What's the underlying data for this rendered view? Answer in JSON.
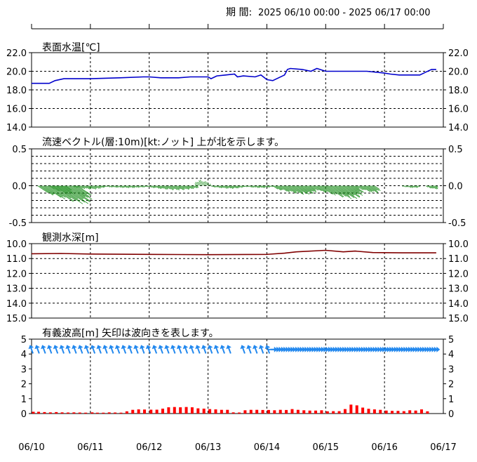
{
  "period": {
    "label": "期 間:",
    "range": "2025 06/10 00:00 - 2025 06/17 00:00"
  },
  "colors": {
    "temperature": "#0000cc",
    "current": "#008000",
    "depth": "#800000",
    "wave_arrow": "#2288ee",
    "wave_bar": "#ff0000"
  },
  "x_axis": {
    "ticks": [
      "06/10",
      "06/11",
      "06/12",
      "06/13",
      "06/14",
      "06/15",
      "06/16",
      "06/17"
    ]
  },
  "chart_data": [
    {
      "type": "line",
      "title": "表面水温[℃]",
      "ylim": [
        14.0,
        22.0
      ],
      "yticks": [
        "22.0",
        "20.0",
        "18.0",
        "16.0",
        "14.0"
      ],
      "x_unit": "days since 06/10 00:00",
      "series": [
        {
          "values": [
            [
              0.0,
              18.7
            ],
            [
              0.3,
              18.7
            ],
            [
              0.4,
              19.0
            ],
            [
              0.55,
              19.2
            ],
            [
              1.0,
              19.2
            ],
            [
              1.5,
              19.3
            ],
            [
              1.9,
              19.4
            ],
            [
              2.0,
              19.4
            ],
            [
              2.2,
              19.3
            ],
            [
              2.5,
              19.3
            ],
            [
              2.7,
              19.4
            ],
            [
              3.0,
              19.4
            ],
            [
              3.05,
              19.2
            ],
            [
              3.15,
              19.5
            ],
            [
              3.3,
              19.6
            ],
            [
              3.45,
              19.7
            ],
            [
              3.5,
              19.4
            ],
            [
              3.6,
              19.5
            ],
            [
              3.8,
              19.4
            ],
            [
              3.9,
              19.6
            ],
            [
              4.0,
              19.1
            ],
            [
              4.1,
              19.0
            ],
            [
              4.2,
              19.3
            ],
            [
              4.3,
              19.6
            ],
            [
              4.35,
              20.2
            ],
            [
              4.4,
              20.3
            ],
            [
              4.6,
              20.2
            ],
            [
              4.75,
              20.0
            ],
            [
              4.85,
              20.3
            ],
            [
              5.0,
              20.0
            ],
            [
              5.5,
              20.0
            ],
            [
              5.7,
              20.0
            ],
            [
              6.0,
              19.8
            ],
            [
              6.1,
              19.7
            ],
            [
              6.25,
              19.6
            ],
            [
              6.6,
              19.6
            ],
            [
              6.7,
              19.9
            ],
            [
              6.8,
              20.2
            ],
            [
              6.88,
              20.2
            ]
          ]
        }
      ]
    },
    {
      "type": "vector",
      "title": "流速ベクトル(層:10m)[kt:ノット]  上が北を示します。",
      "ylim": [
        -0.5,
        0.5
      ],
      "yticks": [
        "0.5",
        "0.0",
        "-0.5"
      ],
      "segments": [
        [
          0.1,
          0.8,
          0.25
        ],
        [
          0.3,
          0.6,
          0.12
        ],
        [
          0.7,
          1.2,
          0.05
        ],
        [
          1.2,
          2.0,
          0.03
        ],
        [
          2.0,
          2.8,
          0.06
        ],
        [
          2.8,
          3.05,
          -0.08
        ],
        [
          3.05,
          3.6,
          0.04
        ],
        [
          3.6,
          4.1,
          0.03
        ],
        [
          4.1,
          4.8,
          0.12
        ],
        [
          4.8,
          5.5,
          0.18
        ],
        [
          5.5,
          5.85,
          0.1
        ],
        [
          6.3,
          6.6,
          0.03
        ],
        [
          6.7,
          6.88,
          0.05
        ]
      ]
    },
    {
      "type": "line",
      "title": "観測水深[m]",
      "ylim": [
        10.0,
        15.0
      ],
      "y_inverted": true,
      "yticks": [
        "10.0",
        "11.0",
        "12.0",
        "13.0",
        "14.0",
        "15.0"
      ],
      "x_unit": "days since 06/10 00:00",
      "series": [
        {
          "values": [
            [
              0.0,
              10.68
            ],
            [
              0.5,
              10.66
            ],
            [
              1.0,
              10.7
            ],
            [
              2.0,
              10.72
            ],
            [
              3.0,
              10.74
            ],
            [
              4.0,
              10.72
            ],
            [
              4.3,
              10.64
            ],
            [
              4.5,
              10.55
            ],
            [
              5.0,
              10.45
            ],
            [
              5.3,
              10.55
            ],
            [
              5.5,
              10.5
            ],
            [
              5.8,
              10.6
            ],
            [
              6.3,
              10.62
            ],
            [
              6.88,
              10.62
            ]
          ]
        }
      ]
    },
    {
      "type": "bar",
      "title": "有義波高[m]  矢印は波向きを表します。",
      "ylim": [
        0,
        5
      ],
      "yticks": [
        "5",
        "4",
        "3",
        "2",
        "1",
        "0"
      ],
      "x_unit": "days since 06/10 00:00",
      "values": [
        [
          0.03,
          0.12
        ],
        [
          0.12,
          0.12
        ],
        [
          0.22,
          0.1
        ],
        [
          0.32,
          0.08
        ],
        [
          0.42,
          0.1
        ],
        [
          0.52,
          0.08
        ],
        [
          0.62,
          0.07
        ],
        [
          0.72,
          0.08
        ],
        [
          0.82,
          0.07
        ],
        [
          0.92,
          0.06
        ],
        [
          1.03,
          0.08
        ],
        [
          1.12,
          0.06
        ],
        [
          1.22,
          0.06
        ],
        [
          1.32,
          0.08
        ],
        [
          1.42,
          0.07
        ],
        [
          1.52,
          0.06
        ],
        [
          1.62,
          0.15
        ],
        [
          1.72,
          0.25
        ],
        [
          1.82,
          0.28
        ],
        [
          1.92,
          0.27
        ],
        [
          2.03,
          0.26
        ],
        [
          2.13,
          0.26
        ],
        [
          2.23,
          0.33
        ],
        [
          2.33,
          0.42
        ],
        [
          2.43,
          0.44
        ],
        [
          2.53,
          0.42
        ],
        [
          2.63,
          0.44
        ],
        [
          2.73,
          0.42
        ],
        [
          2.83,
          0.35
        ],
        [
          2.93,
          0.33
        ],
        [
          3.03,
          0.3
        ],
        [
          3.13,
          0.28
        ],
        [
          3.23,
          0.25
        ],
        [
          3.33,
          0.25
        ],
        [
          3.43,
          0.08
        ],
        [
          3.53,
          0.07
        ],
        [
          3.63,
          0.22
        ],
        [
          3.73,
          0.25
        ],
        [
          3.83,
          0.25
        ],
        [
          3.93,
          0.24
        ],
        [
          4.03,
          0.24
        ],
        [
          4.13,
          0.22
        ],
        [
          4.23,
          0.25
        ],
        [
          4.33,
          0.24
        ],
        [
          4.43,
          0.3
        ],
        [
          4.53,
          0.25
        ],
        [
          4.63,
          0.22
        ],
        [
          4.73,
          0.2
        ],
        [
          4.83,
          0.2
        ],
        [
          4.93,
          0.22
        ],
        [
          5.03,
          0.15
        ],
        [
          5.13,
          0.16
        ],
        [
          5.23,
          0.16
        ],
        [
          5.33,
          0.3
        ],
        [
          5.43,
          0.6
        ],
        [
          5.53,
          0.55
        ],
        [
          5.63,
          0.4
        ],
        [
          5.73,
          0.32
        ],
        [
          5.83,
          0.28
        ],
        [
          5.93,
          0.25
        ],
        [
          6.03,
          0.2
        ],
        [
          6.13,
          0.18
        ],
        [
          6.23,
          0.18
        ],
        [
          6.33,
          0.16
        ],
        [
          6.43,
          0.22
        ],
        [
          6.53,
          0.2
        ],
        [
          6.63,
          0.28
        ],
        [
          6.73,
          0.15
        ]
      ],
      "arrows": {
        "level": 4.3,
        "directions_deg": [
          [
            0.0,
            3.45,
            160
          ],
          [
            3.6,
            4.1,
            160
          ],
          [
            4.1,
            6.9,
            270
          ]
        ]
      }
    }
  ]
}
